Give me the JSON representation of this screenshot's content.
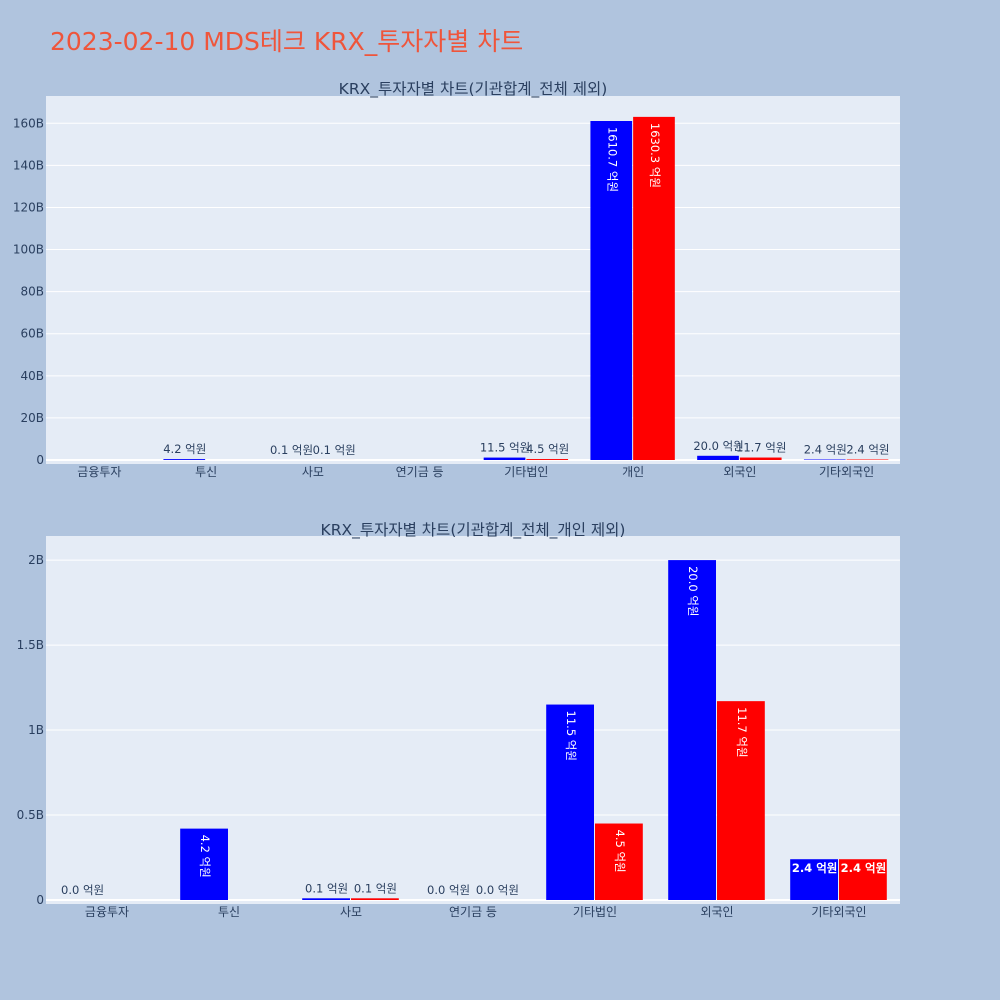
{
  "page": {
    "title": "2023-02-10 MDS테크 KRX_투자자별 차트"
  },
  "colors": {
    "background": "#b0c4de",
    "plot_bg": "#e5ecf6",
    "grid": "#ffffff",
    "title": "#ef553b",
    "text": "#2a3f5f",
    "series_a": "#0000ff",
    "series_b": "#ff0000"
  },
  "chart_data": [
    {
      "type": "bar",
      "title": "KRX_투자자별 차트(기관합계_전체 제외)",
      "categories": [
        "금융투자",
        "투신",
        "사모",
        "연기금 등",
        "기타법인",
        "개인",
        "외국인",
        "기타외국인"
      ],
      "series": [
        {
          "color": "#0000ff",
          "values": [
            0,
            0.42,
            0.01,
            0,
            1.15,
            161.07,
            2.0,
            0.24
          ],
          "labels": [
            "",
            "4.2 억원",
            "0.1 억원",
            "",
            "11.5 억원",
            "1610.7 억원",
            "20.0 억원",
            "2.4 억원"
          ]
        },
        {
          "color": "#ff0000",
          "values": [
            0,
            0,
            0.01,
            0,
            0.45,
            163.03,
            1.17,
            0.24
          ],
          "labels": [
            "",
            "",
            "0.1 억원",
            "",
            "4.5 억원",
            "1630.3 억원",
            "11.7 억원",
            "2.4 억원"
          ]
        }
      ],
      "y_unit": "B",
      "ylim": [
        0,
        172
      ],
      "yticks": [
        0,
        20,
        40,
        60,
        80,
        100,
        120,
        140,
        160
      ],
      "ytick_labels": [
        "0",
        "20B",
        "40B",
        "60B",
        "80B",
        "100B",
        "120B",
        "140B",
        "160B"
      ],
      "grid": true,
      "legend": "none"
    },
    {
      "type": "bar",
      "title": "KRX_투자자별 차트(기관합계_전체_개인 제외)",
      "categories": [
        "금융투자",
        "투신",
        "사모",
        "연기금 등",
        "기타법인",
        "외국인",
        "기타외국인"
      ],
      "series": [
        {
          "color": "#0000ff",
          "values": [
            0,
            0.42,
            0.01,
            0,
            1.15,
            2.0,
            0.24
          ],
          "labels": [
            "0.0 억원",
            "4.2 억원",
            "0.1 억원",
            "0.0 억원",
            "11.5 억원",
            "20.0 억원",
            "2.4 억원"
          ]
        },
        {
          "color": "#ff0000",
          "values": [
            0,
            0,
            0.01,
            0,
            0.45,
            1.17,
            0.24
          ],
          "labels": [
            "",
            "",
            "0.1 억원",
            "0.0 억원",
            "4.5 억원",
            "11.7 억원",
            "2.4 억원"
          ]
        }
      ],
      "y_unit": "B",
      "ylim": [
        0,
        2.13
      ],
      "yticks": [
        0,
        0.5,
        1,
        1.5,
        2
      ],
      "ytick_labels": [
        "0",
        "0.5B",
        "1B",
        "1.5B",
        "2B"
      ],
      "grid": true,
      "legend": "none"
    }
  ]
}
